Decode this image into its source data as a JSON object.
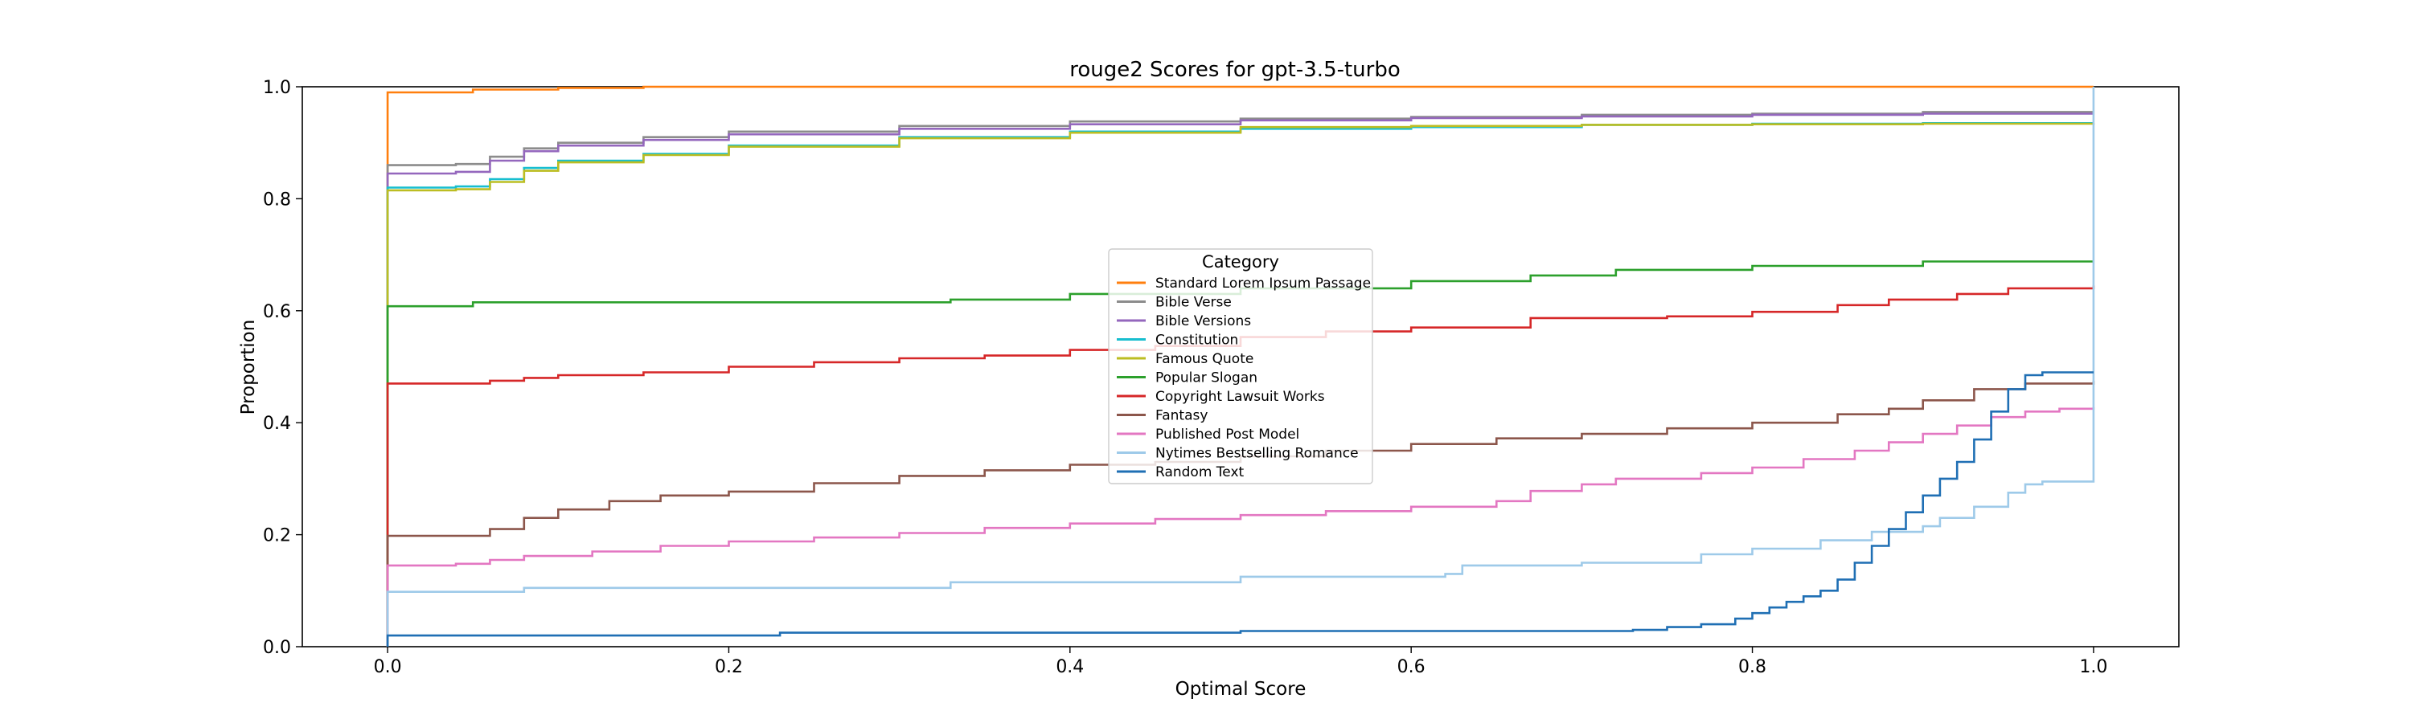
{
  "chart_data": {
    "type": "line",
    "step": true,
    "title": "rouge2 Scores for gpt-3.5-turbo",
    "xlabel": "Optimal Score",
    "ylabel": "Proportion",
    "xlim": [
      -0.05,
      1.05
    ],
    "ylim": [
      0.0,
      1.0
    ],
    "xticks": [
      "0.0",
      "0.2",
      "0.4",
      "0.6",
      "0.8",
      "1.0"
    ],
    "yticks": [
      "0.0",
      "0.2",
      "0.4",
      "0.6",
      "0.8",
      "1.0"
    ],
    "grid": false,
    "legend": {
      "title": "Category",
      "placement": "center"
    },
    "series": [
      {
        "name": "Standard Lorem Ipsum Passage",
        "color": "#ff7f0e",
        "points": [
          [
            0,
            0.99
          ],
          [
            0.05,
            0.995
          ],
          [
            0.1,
            0.998
          ],
          [
            0.15,
            1.0
          ],
          [
            1.0,
            1.0
          ]
        ]
      },
      {
        "name": "Bible Verse",
        "color": "#8c8c8c",
        "points": [
          [
            0,
            0.86
          ],
          [
            0.04,
            0.862
          ],
          [
            0.06,
            0.875
          ],
          [
            0.08,
            0.89
          ],
          [
            0.1,
            0.9
          ],
          [
            0.15,
            0.91
          ],
          [
            0.2,
            0.92
          ],
          [
            0.3,
            0.93
          ],
          [
            0.4,
            0.938
          ],
          [
            0.5,
            0.943
          ],
          [
            0.6,
            0.946
          ],
          [
            0.7,
            0.95
          ],
          [
            0.8,
            0.952
          ],
          [
            0.9,
            0.955
          ],
          [
            1.0,
            0.955
          ]
        ]
      },
      {
        "name": "Bible Versions",
        "color": "#9467bd",
        "points": [
          [
            0,
            0.845
          ],
          [
            0.04,
            0.848
          ],
          [
            0.06,
            0.868
          ],
          [
            0.08,
            0.885
          ],
          [
            0.1,
            0.895
          ],
          [
            0.15,
            0.905
          ],
          [
            0.2,
            0.915
          ],
          [
            0.3,
            0.925
          ],
          [
            0.4,
            0.933
          ],
          [
            0.5,
            0.94
          ],
          [
            0.6,
            0.944
          ],
          [
            0.7,
            0.947
          ],
          [
            0.8,
            0.95
          ],
          [
            0.9,
            0.952
          ],
          [
            1.0,
            0.952
          ]
        ]
      },
      {
        "name": "Constitution",
        "color": "#17becf",
        "points": [
          [
            0,
            0.82
          ],
          [
            0.04,
            0.822
          ],
          [
            0.06,
            0.835
          ],
          [
            0.08,
            0.855
          ],
          [
            0.1,
            0.868
          ],
          [
            0.15,
            0.88
          ],
          [
            0.2,
            0.895
          ],
          [
            0.3,
            0.91
          ],
          [
            0.4,
            0.92
          ],
          [
            0.5,
            0.925
          ],
          [
            0.6,
            0.928
          ],
          [
            0.7,
            0.932
          ],
          [
            0.8,
            0.934
          ],
          [
            0.9,
            0.935
          ],
          [
            1.0,
            0.935
          ]
        ]
      },
      {
        "name": "Famous Quote",
        "color": "#bcbd22",
        "points": [
          [
            0,
            0.815
          ],
          [
            0.04,
            0.817
          ],
          [
            0.06,
            0.83
          ],
          [
            0.08,
            0.85
          ],
          [
            0.1,
            0.865
          ],
          [
            0.15,
            0.878
          ],
          [
            0.2,
            0.893
          ],
          [
            0.3,
            0.908
          ],
          [
            0.4,
            0.918
          ],
          [
            0.5,
            0.928
          ],
          [
            0.6,
            0.93
          ],
          [
            0.7,
            0.932
          ],
          [
            0.8,
            0.933
          ],
          [
            0.9,
            0.934
          ],
          [
            1.0,
            0.935
          ]
        ]
      },
      {
        "name": "Popular Slogan",
        "color": "#2ca02c",
        "points": [
          [
            0,
            0.608
          ],
          [
            0.05,
            0.615
          ],
          [
            0.33,
            0.62
          ],
          [
            0.4,
            0.63
          ],
          [
            0.5,
            0.64
          ],
          [
            0.6,
            0.653
          ],
          [
            0.67,
            0.663
          ],
          [
            0.72,
            0.673
          ],
          [
            0.8,
            0.68
          ],
          [
            0.9,
            0.688
          ],
          [
            1.0,
            0.688
          ]
        ]
      },
      {
        "name": "Copyright Lawsuit Works",
        "color": "#d62728",
        "points": [
          [
            0,
            0.47
          ],
          [
            0.06,
            0.475
          ],
          [
            0.08,
            0.48
          ],
          [
            0.1,
            0.485
          ],
          [
            0.15,
            0.49
          ],
          [
            0.2,
            0.5
          ],
          [
            0.25,
            0.508
          ],
          [
            0.3,
            0.515
          ],
          [
            0.35,
            0.52
          ],
          [
            0.4,
            0.53
          ],
          [
            0.45,
            0.537
          ],
          [
            0.5,
            0.553
          ],
          [
            0.55,
            0.563
          ],
          [
            0.6,
            0.57
          ],
          [
            0.67,
            0.587
          ],
          [
            0.75,
            0.59
          ],
          [
            0.8,
            0.598
          ],
          [
            0.85,
            0.61
          ],
          [
            0.88,
            0.62
          ],
          [
            0.92,
            0.63
          ],
          [
            0.95,
            0.64
          ],
          [
            1.0,
            0.645
          ]
        ]
      },
      {
        "name": "Fantasy",
        "color": "#8c564b",
        "points": [
          [
            0,
            0.198
          ],
          [
            0.04,
            0.198
          ],
          [
            0.06,
            0.21
          ],
          [
            0.08,
            0.23
          ],
          [
            0.1,
            0.245
          ],
          [
            0.13,
            0.26
          ],
          [
            0.16,
            0.27
          ],
          [
            0.2,
            0.277
          ],
          [
            0.25,
            0.292
          ],
          [
            0.3,
            0.305
          ],
          [
            0.35,
            0.315
          ],
          [
            0.4,
            0.325
          ],
          [
            0.45,
            0.33
          ],
          [
            0.5,
            0.34
          ],
          [
            0.55,
            0.35
          ],
          [
            0.6,
            0.362
          ],
          [
            0.65,
            0.372
          ],
          [
            0.7,
            0.38
          ],
          [
            0.75,
            0.39
          ],
          [
            0.8,
            0.4
          ],
          [
            0.85,
            0.415
          ],
          [
            0.88,
            0.425
          ],
          [
            0.9,
            0.44
          ],
          [
            0.93,
            0.46
          ],
          [
            0.96,
            0.47
          ],
          [
            1.0,
            0.475
          ]
        ]
      },
      {
        "name": "Published Post Model",
        "color": "#e377c2",
        "points": [
          [
            0,
            0.145
          ],
          [
            0.04,
            0.148
          ],
          [
            0.06,
            0.155
          ],
          [
            0.08,
            0.162
          ],
          [
            0.12,
            0.17
          ],
          [
            0.16,
            0.18
          ],
          [
            0.2,
            0.188
          ],
          [
            0.25,
            0.195
          ],
          [
            0.3,
            0.203
          ],
          [
            0.35,
            0.212
          ],
          [
            0.4,
            0.22
          ],
          [
            0.45,
            0.228
          ],
          [
            0.5,
            0.235
          ],
          [
            0.55,
            0.242
          ],
          [
            0.6,
            0.25
          ],
          [
            0.65,
            0.26
          ],
          [
            0.67,
            0.278
          ],
          [
            0.7,
            0.29
          ],
          [
            0.72,
            0.3
          ],
          [
            0.77,
            0.31
          ],
          [
            0.8,
            0.32
          ],
          [
            0.83,
            0.335
          ],
          [
            0.86,
            0.35
          ],
          [
            0.88,
            0.365
          ],
          [
            0.9,
            0.38
          ],
          [
            0.92,
            0.395
          ],
          [
            0.94,
            0.41
          ],
          [
            0.96,
            0.42
          ],
          [
            0.98,
            0.425
          ],
          [
            1.0,
            0.428
          ]
        ]
      },
      {
        "name": "Nytimes Bestselling Romance",
        "color": "#9ecae9",
        "points": [
          [
            0,
            0.098
          ],
          [
            0.08,
            0.105
          ],
          [
            0.33,
            0.115
          ],
          [
            0.5,
            0.125
          ],
          [
            0.62,
            0.13
          ],
          [
            0.63,
            0.145
          ],
          [
            0.7,
            0.15
          ],
          [
            0.77,
            0.165
          ],
          [
            0.8,
            0.175
          ],
          [
            0.84,
            0.19
          ],
          [
            0.87,
            0.205
          ],
          [
            0.9,
            0.215
          ],
          [
            0.91,
            0.23
          ],
          [
            0.93,
            0.25
          ],
          [
            0.95,
            0.275
          ],
          [
            0.96,
            0.29
          ],
          [
            0.97,
            0.295
          ],
          [
            0.999,
            0.295
          ],
          [
            1.0,
            1.0
          ]
        ]
      },
      {
        "name": "Random Text",
        "color": "#1f6fb4",
        "points": [
          [
            0,
            0.02
          ],
          [
            0.23,
            0.025
          ],
          [
            0.5,
            0.028
          ],
          [
            0.73,
            0.03
          ],
          [
            0.75,
            0.035
          ],
          [
            0.77,
            0.04
          ],
          [
            0.79,
            0.05
          ],
          [
            0.8,
            0.06
          ],
          [
            0.81,
            0.07
          ],
          [
            0.82,
            0.08
          ],
          [
            0.83,
            0.09
          ],
          [
            0.84,
            0.1
          ],
          [
            0.85,
            0.12
          ],
          [
            0.86,
            0.15
          ],
          [
            0.87,
            0.18
          ],
          [
            0.88,
            0.21
          ],
          [
            0.89,
            0.24
          ],
          [
            0.9,
            0.27
          ],
          [
            0.91,
            0.3
          ],
          [
            0.92,
            0.33
          ],
          [
            0.93,
            0.37
          ],
          [
            0.94,
            0.42
          ],
          [
            0.95,
            0.46
          ],
          [
            0.96,
            0.485
          ],
          [
            0.97,
            0.49
          ],
          [
            1.0,
            0.49
          ]
        ]
      }
    ]
  }
}
